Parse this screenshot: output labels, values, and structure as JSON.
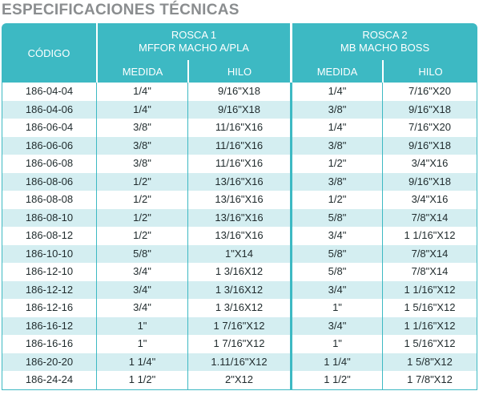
{
  "title": "ESPECIFICACIONES TÉCNICAS",
  "header": {
    "codigo": "CÓDIGO",
    "rosca1_line1": "ROSCA 1",
    "rosca1_line2": "MFFOR MACHO A/PLA",
    "rosca2_line1": "ROSCA 2",
    "rosca2_line2": "MB MACHO BOSS",
    "medida1": "MEDIDA",
    "hilo1": "HILO",
    "medida2": "MEDIDA",
    "hilo2": "HILO"
  },
  "rows": [
    [
      "186-04-04",
      "1/4\"",
      "9/16\"X18",
      "1/4\"",
      "7/16\"X20"
    ],
    [
      "186-04-06",
      "1/4\"",
      "9/16\"X18",
      "3/8\"",
      "9/16\"X18"
    ],
    [
      "186-06-04",
      "3/8\"",
      "11/16\"X16",
      "1/4\"",
      "7/16\"X20"
    ],
    [
      "186-06-06",
      "3/8\"",
      "11/16\"X16",
      "3/8\"",
      "9/16\"X18"
    ],
    [
      "186-06-08",
      "3/8\"",
      "11/16\"X16",
      "1/2\"",
      "3/4\"X16"
    ],
    [
      "186-08-06",
      "1/2\"",
      "13/16\"X16",
      "3/8\"",
      "9/16\"X18"
    ],
    [
      "186-08-08",
      "1/2\"",
      "13/16\"X16",
      "1/2\"",
      "3/4\"X16"
    ],
    [
      "186-08-10",
      "1/2\"",
      "13/16\"X16",
      "5/8\"",
      "7/8\"X14"
    ],
    [
      "186-08-12",
      "1/2\"",
      "13/16\"X16",
      "3/4\"",
      "1 1/16\"X12"
    ],
    [
      "186-10-10",
      "5/8\"",
      "1\"X14",
      "5/8\"",
      "7/8\"X14"
    ],
    [
      "186-12-10",
      "3/4\"",
      "1 3/16X12",
      "5/8\"",
      "7/8\"X14"
    ],
    [
      "186-12-12",
      "3/4\"",
      "1 3/16X12",
      "3/4\"",
      "1 1/16\"X12"
    ],
    [
      "186-12-16",
      "3/4\"",
      "1 3/16X12",
      "1\"",
      "1 5/16\"X12"
    ],
    [
      "186-16-12",
      "1\"",
      "1 7/16\"X12",
      "3/4\"",
      "1 1/16\"X12"
    ],
    [
      "186-16-16",
      "1\"",
      "1 7/16\"X12",
      "1\"",
      "1 5/16\"X12"
    ],
    [
      "186-20-20",
      "1  1/4\"",
      "1.11/16\"X12",
      "1  1/4\"",
      "1 5/8\"X12"
    ],
    [
      "186-24-24",
      "1  1/2\"",
      "2\"X12",
      "1  1/2\"",
      "1 7/8\"X12"
    ]
  ]
}
